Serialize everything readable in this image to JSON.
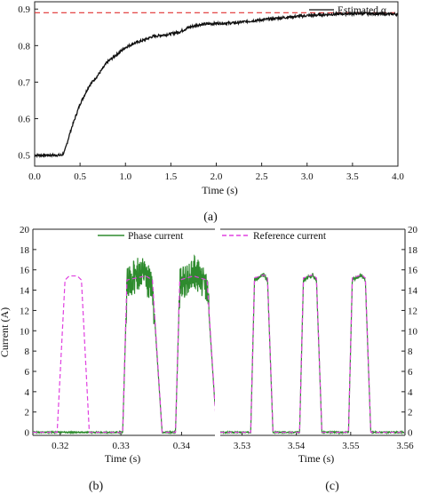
{
  "chart_data": [
    {
      "panel": "a",
      "type": "line",
      "caption": "(a)",
      "xlabel": "Time (s)",
      "ylabel": "",
      "xlim": [
        0.0,
        4.0
      ],
      "ylim": [
        0.47,
        0.92
      ],
      "x_ticks": [
        "0.0",
        "0.5",
        "1.0",
        "1.5",
        "2.0",
        "2.5",
        "3.0",
        "3.5",
        "4.0"
      ],
      "y_ticks": [
        "0.5",
        "0.6",
        "0.7",
        "0.8",
        "0.9"
      ],
      "legend_position": "top-right",
      "grid": false,
      "series": [
        {
          "name": "Estimated α",
          "color": "#111111",
          "x": [
            0.0,
            0.1,
            0.2,
            0.3,
            0.33,
            0.4,
            0.5,
            0.6,
            0.7,
            0.8,
            0.9,
            1.0,
            1.1,
            1.2,
            1.3,
            1.5,
            1.6,
            1.7,
            1.8,
            2.0,
            2.2,
            2.4,
            2.6,
            2.8,
            3.0,
            3.2,
            3.4,
            3.6,
            3.8,
            4.0
          ],
          "y": [
            0.5,
            0.5,
            0.5,
            0.5,
            0.51,
            0.57,
            0.64,
            0.69,
            0.72,
            0.755,
            0.775,
            0.795,
            0.807,
            0.815,
            0.825,
            0.832,
            0.838,
            0.85,
            0.857,
            0.861,
            0.862,
            0.868,
            0.873,
            0.878,
            0.882,
            0.885,
            0.887,
            0.888,
            0.887,
            0.886
          ]
        },
        {
          "name": "",
          "style": "dashed",
          "color": "#e03030",
          "x": [
            0.0,
            4.0
          ],
          "y": [
            0.89,
            0.89
          ]
        }
      ]
    },
    {
      "panel": "b",
      "type": "line",
      "caption": "(b)",
      "xlabel": "Time (s)",
      "ylabel": "Current (A)",
      "xlim": [
        0.3155,
        0.3455
      ],
      "ylim": [
        -0.3,
        20
      ],
      "x_ticks": [
        "0.32",
        "0.33",
        "0.34"
      ],
      "y_ticks": [
        "0",
        "2",
        "4",
        "6",
        "8",
        "10",
        "12",
        "14",
        "16",
        "18",
        "20"
      ],
      "legend_position": "top",
      "series": [
        {
          "name": "Phase current",
          "color": "#2e8b2e",
          "x": [
            0.3155,
            0.329,
            0.3303,
            0.331,
            0.333,
            0.334,
            0.3352,
            0.3368,
            0.339,
            0.3397,
            0.342,
            0.343,
            0.3442,
            0.3458
          ],
          "y": [
            0,
            0,
            0,
            14.5,
            15.8,
            15.2,
            14.5,
            0,
            0,
            14.5,
            15.8,
            15.2,
            14.5,
            0
          ]
        },
        {
          "name": "Reference current",
          "color": "#e040e0",
          "style": "dashed",
          "x": [
            0.3155,
            0.3195,
            0.3208,
            0.3215,
            0.3228,
            0.3235,
            0.3248,
            0.329,
            0.3303,
            0.331,
            0.3341,
            0.3352,
            0.3368,
            0.339,
            0.3397,
            0.342,
            0.343,
            0.3442,
            0.3458
          ],
          "y": [
            0,
            0,
            15.0,
            15.4,
            15.4,
            15.0,
            0,
            0,
            0,
            15.0,
            15.4,
            15.0,
            0,
            0,
            15.0,
            15.4,
            15.2,
            15.0,
            0
          ]
        }
      ]
    },
    {
      "panel": "c",
      "type": "line",
      "caption": "(c)",
      "xlabel": "Time (s)",
      "ylabel": "",
      "xlim": [
        3.526,
        3.56
      ],
      "ylim": [
        -0.3,
        20
      ],
      "x_ticks": [
        "3.53",
        "3.54",
        "3.55",
        "3.56"
      ],
      "y_ticks": [
        "0",
        "2",
        "4",
        "6",
        "8",
        "10",
        "12",
        "14",
        "16",
        "18",
        "20"
      ],
      "series": [
        {
          "name": "Phase current",
          "color": "#2e8b2e",
          "x": [
            3.526,
            3.5306,
            3.5316,
            3.5323,
            3.534,
            3.5347,
            3.5357,
            3.5396,
            3.5406,
            3.5413,
            3.543,
            3.5437,
            3.5447,
            3.5486,
            3.5496,
            3.5503,
            3.552,
            3.5527,
            3.5537,
            3.56
          ],
          "y": [
            0,
            0,
            0,
            15.0,
            15.5,
            15.0,
            0,
            0,
            0,
            15.0,
            15.5,
            15.0,
            0,
            0,
            0,
            15.0,
            15.5,
            15.0,
            0,
            0
          ]
        },
        {
          "name": "Reference current",
          "color": "#e040e0",
          "style": "dashed",
          "x": [
            3.526,
            3.5306,
            3.5316,
            3.5323,
            3.534,
            3.5347,
            3.5357,
            3.5396,
            3.5406,
            3.5413,
            3.543,
            3.5437,
            3.5447,
            3.5486,
            3.5496,
            3.5503,
            3.552,
            3.5527,
            3.5537,
            3.56
          ],
          "y": [
            0,
            0,
            0,
            15.2,
            15.5,
            15.2,
            0,
            0,
            0,
            15.2,
            15.5,
            15.2,
            0,
            0,
            0,
            15.2,
            15.5,
            15.2,
            0,
            0
          ]
        }
      ]
    }
  ]
}
